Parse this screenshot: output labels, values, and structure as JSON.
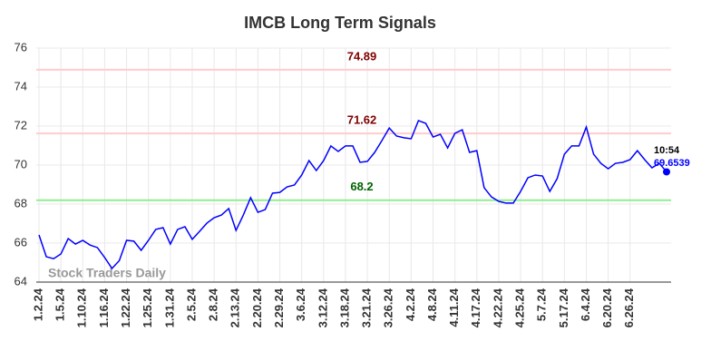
{
  "chart_data": {
    "type": "line",
    "title": "IMCB Long Term Signals",
    "categories": [
      "1.2.24",
      null,
      null,
      "1.5.24",
      null,
      null,
      "1.10.24",
      null,
      null,
      "1.16.24",
      null,
      null,
      "1.22.24",
      null,
      null,
      "1.25.24",
      null,
      null,
      "1.31.24",
      null,
      null,
      "2.5.24",
      null,
      null,
      "2.8.24",
      null,
      null,
      "2.13.24",
      null,
      null,
      "2.20.24",
      null,
      null,
      "2.29.24",
      null,
      null,
      "3.6.24",
      null,
      null,
      "3.12.24",
      null,
      null,
      "3.18.24",
      null,
      null,
      "3.21.24",
      null,
      null,
      "3.26.24",
      null,
      null,
      "4.2.24",
      null,
      null,
      "4.8.24",
      null,
      null,
      "4.11.24",
      null,
      null,
      "4.17.24",
      null,
      null,
      "4.22.24",
      null,
      null,
      "4.25.24",
      null,
      null,
      "5.7.24",
      null,
      null,
      "5.17.24",
      null,
      null,
      "6.4.24",
      null,
      null,
      "6.20.24",
      null,
      null,
      "6.26.24",
      null,
      null,
      null,
      null,
      null
    ],
    "values": [
      66.42,
      65.3,
      65.2,
      65.44,
      66.23,
      65.95,
      66.14,
      65.9,
      65.77,
      65.26,
      64.7,
      65.1,
      66.14,
      66.1,
      65.63,
      66.14,
      66.7,
      66.79,
      65.95,
      66.7,
      66.84,
      66.19,
      66.6,
      67.02,
      67.3,
      67.44,
      67.77,
      66.65,
      67.44,
      68.33,
      67.58,
      67.72,
      68.56,
      68.6,
      68.88,
      68.98,
      69.49,
      70.23,
      69.72,
      70.23,
      70.98,
      70.7,
      70.98,
      70.98,
      70.14,
      70.19,
      70.65,
      71.26,
      71.9,
      71.49,
      71.4,
      71.35,
      72.28,
      72.14,
      71.44,
      71.58,
      70.88,
      71.63,
      71.81,
      70.65,
      70.74,
      68.84,
      68.37,
      68.14,
      68.05,
      68.05,
      68.65,
      69.35,
      69.49,
      69.44,
      68.65,
      69.3,
      70.56,
      70.98,
      70.98,
      71.95,
      70.56,
      70.09,
      69.81,
      70.09,
      70.14,
      70.28,
      70.74,
      70.28,
      69.86,
      70.09,
      69.6539
    ],
    "color": "#0000ff",
    "ylim": [
      64,
      76
    ],
    "yticks": [
      64,
      66,
      68,
      70,
      72,
      74,
      76
    ],
    "grid": true,
    "hlines": [
      {
        "value": 74.89,
        "color": "#ffcccc",
        "label_color": "#800000"
      },
      {
        "value": 71.62,
        "color": "#ffcccc",
        "label_color": "#800000"
      },
      {
        "value": 68.2,
        "color": "#90ee90",
        "label_color": "#006400"
      }
    ],
    "last_time": "10:54",
    "watermark": "Stock Traders Daily"
  }
}
